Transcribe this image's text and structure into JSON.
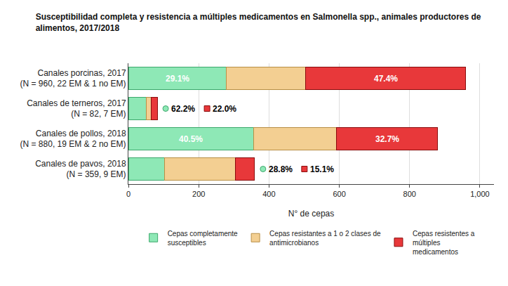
{
  "chart_data": {
    "type": "bar",
    "orientation": "horizontal",
    "stacked": true,
    "title": "Susceptibilidad completa y resistencia a múltiples medicamentos en Salmonella spp., animales productores de\nalimentos, 2017/2018",
    "x_label": "N° de cepas",
    "categories": [
      "Canales porcinas, 2017\n(N = 960, 22 EM & 1 no EM)",
      "Canales de terneros, 2017\n(N = 82, 7 EM)",
      "Canales de pollos, 2018\n(N = 880, 19 EM & 2 no EM)",
      "Canales de pavos, 2018\n(N = 359, 9 EM)"
    ],
    "series": [
      {
        "name": "Cepas completamente\nsusceptibles",
        "color": "#8ee8b6",
        "values": [
          279,
          51,
          356,
          103
        ]
      },
      {
        "name": "Cepas resistantes a 1 o 2 clases de\nantimicrobianos",
        "color": "#f3cf92",
        "values": [
          226,
          13,
          236,
          202
        ]
      },
      {
        "name": "Cepas resistentes a\nmúltiples\nmedicamentos",
        "color": "#e8383a",
        "values": [
          455,
          18,
          288,
          54
        ]
      }
    ],
    "annotations": [
      {
        "category": 0,
        "series": 0,
        "text": "29.1%"
      },
      {
        "category": 0,
        "series": 2,
        "text": "47.4%"
      },
      {
        "category": 1,
        "series": 0,
        "text": "62.2%"
      },
      {
        "category": 1,
        "series": 2,
        "text": "22.0%"
      },
      {
        "category": 2,
        "series": 0,
        "text": "40.5%"
      },
      {
        "category": 2,
        "series": 2,
        "text": "32.7%"
      },
      {
        "category": 3,
        "series": 0,
        "text": "28.8%"
      },
      {
        "category": 3,
        "series": 2,
        "text": "15.1%"
      }
    ],
    "xlim": [
      0,
      1040
    ],
    "xticks": [
      0,
      200,
      400,
      600,
      800,
      {
        "value": 1000,
        "label": "1,000"
      }
    ],
    "grid": true,
    "legend": "bottom"
  }
}
